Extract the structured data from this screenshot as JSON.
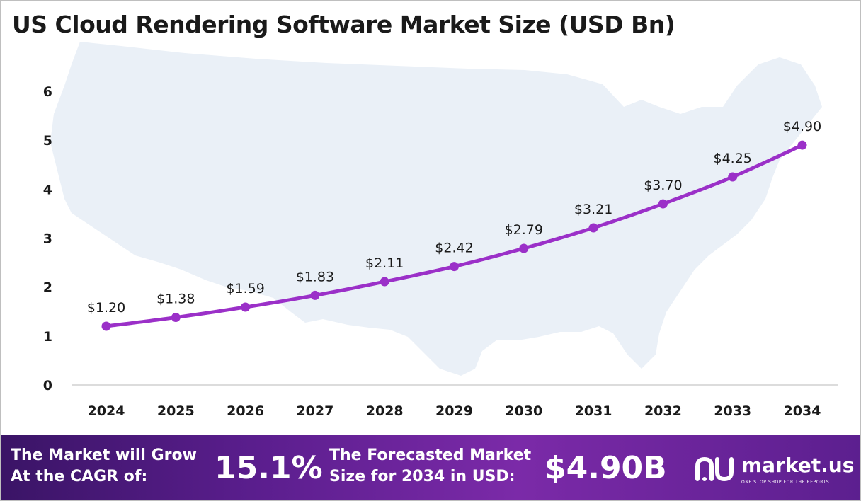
{
  "chart_data": {
    "type": "line",
    "title": "US Cloud Rendering Software Market Size (USD Bn)",
    "x": [
      "2024",
      "2025",
      "2026",
      "2027",
      "2028",
      "2029",
      "2030",
      "2031",
      "2032",
      "2033",
      "2034"
    ],
    "series": [
      {
        "values": [
          1.2,
          1.38,
          1.59,
          1.83,
          2.11,
          2.42,
          2.79,
          3.21,
          3.7,
          4.25,
          4.9
        ],
        "labels": [
          "$1.20",
          "$1.38",
          "$1.59",
          "$1.83",
          "$2.11",
          "$2.42",
          "$2.79",
          "$3.21",
          "$3.70",
          "$4.25",
          "$4.90"
        ]
      }
    ],
    "yticks": [
      "0",
      "1",
      "2",
      "3",
      "4",
      "5",
      "6"
    ],
    "ylim": [
      0,
      6
    ],
    "grid": false,
    "line_color": "#9b30c8"
  },
  "footer": {
    "cagr_label_line1": "The Market will Grow",
    "cagr_label_line2": "At the CAGR of:",
    "cagr_value": "15.1%",
    "forecast_label_line1": "The Forecasted Market",
    "forecast_label_line2": "Size for 2034 in USD:",
    "forecast_value": "$4.90B",
    "brand_name": "market.us",
    "brand_tagline": "ONE STOP SHOP FOR THE REPORTS"
  }
}
